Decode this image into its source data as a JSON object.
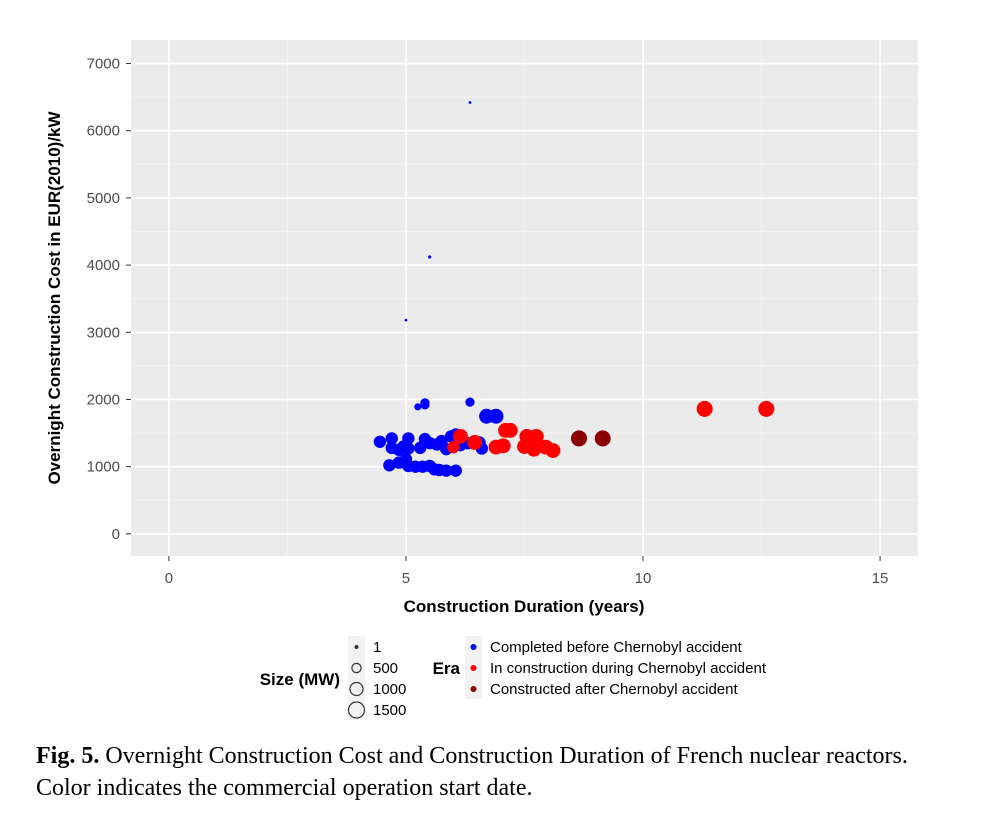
{
  "caption": {
    "label": "Fig. 5.",
    "text": "Overnight Construction Cost and Construction Duration of French nuclear reactors. Color indicates the commercial operation start date."
  },
  "chart_data": {
    "type": "scatter",
    "title": "",
    "xlabel": "Construction Duration (years)",
    "ylabel": "Overnight Construction Cost in EUR(2010)/kW",
    "xlim": [
      -0.8,
      15.8
    ],
    "ylim": [
      -330,
      7350
    ],
    "x_ticks": [
      0,
      5,
      10,
      15
    ],
    "y_ticks": [
      0,
      1000,
      2000,
      3000,
      4000,
      5000,
      6000,
      7000
    ],
    "grid": true,
    "background": "#ebebeb",
    "size_legend": {
      "title": "Size (MW)",
      "entries": [
        {
          "label": "1",
          "size": 1
        },
        {
          "label": "500",
          "size": 500
        },
        {
          "label": "1000",
          "size": 1000
        },
        {
          "label": "1500",
          "size": 1500
        }
      ]
    },
    "color_legend": {
      "title": "Era",
      "entries": [
        {
          "label": "Completed before Chernobyl accident",
          "color": "#0000ff"
        },
        {
          "label": "In construction during Chernobyl accident",
          "color": "#ff0000"
        },
        {
          "label": "Constructed after Chernobyl accident",
          "color": "#8b0000"
        }
      ]
    },
    "series": [
      {
        "color": "#0000ff",
        "points": [
          {
            "x": 6.35,
            "y": 6420,
            "size": 40
          },
          {
            "x": 5.5,
            "y": 4120,
            "size": 60
          },
          {
            "x": 5.0,
            "y": 3180,
            "size": 40
          },
          {
            "x": 5.25,
            "y": 1890,
            "size": 300
          },
          {
            "x": 5.4,
            "y": 1950,
            "size": 500
          },
          {
            "x": 5.4,
            "y": 1920,
            "size": 500
          },
          {
            "x": 6.35,
            "y": 1960,
            "size": 500
          },
          {
            "x": 6.7,
            "y": 1750,
            "size": 1300
          },
          {
            "x": 6.9,
            "y": 1750,
            "size": 1300
          },
          {
            "x": 4.45,
            "y": 1370,
            "size": 900
          },
          {
            "x": 4.7,
            "y": 1420,
            "size": 900
          },
          {
            "x": 4.7,
            "y": 1280,
            "size": 900
          },
          {
            "x": 4.85,
            "y": 1250,
            "size": 900
          },
          {
            "x": 4.95,
            "y": 1300,
            "size": 900
          },
          {
            "x": 5.05,
            "y": 1420,
            "size": 900
          },
          {
            "x": 5.05,
            "y": 1270,
            "size": 900
          },
          {
            "x": 5.3,
            "y": 1280,
            "size": 900
          },
          {
            "x": 5.4,
            "y": 1410,
            "size": 900
          },
          {
            "x": 5.5,
            "y": 1350,
            "size": 900
          },
          {
            "x": 5.65,
            "y": 1330,
            "size": 900
          },
          {
            "x": 5.75,
            "y": 1380,
            "size": 900
          },
          {
            "x": 5.85,
            "y": 1260,
            "size": 900
          },
          {
            "x": 5.95,
            "y": 1450,
            "size": 900
          },
          {
            "x": 6.05,
            "y": 1480,
            "size": 900
          },
          {
            "x": 6.15,
            "y": 1320,
            "size": 900
          },
          {
            "x": 6.3,
            "y": 1350,
            "size": 900
          },
          {
            "x": 6.55,
            "y": 1360,
            "size": 900
          },
          {
            "x": 6.6,
            "y": 1270,
            "size": 900
          },
          {
            "x": 4.65,
            "y": 1020,
            "size": 900
          },
          {
            "x": 4.85,
            "y": 1060,
            "size": 900
          },
          {
            "x": 5.0,
            "y": 1110,
            "size": 900
          },
          {
            "x": 5.05,
            "y": 1010,
            "size": 900
          },
          {
            "x": 5.2,
            "y": 1000,
            "size": 900
          },
          {
            "x": 5.35,
            "y": 1000,
            "size": 900
          },
          {
            "x": 5.5,
            "y": 1010,
            "size": 900
          },
          {
            "x": 5.6,
            "y": 960,
            "size": 900
          },
          {
            "x": 5.7,
            "y": 950,
            "size": 900
          },
          {
            "x": 5.85,
            "y": 940,
            "size": 900
          },
          {
            "x": 6.05,
            "y": 940,
            "size": 900
          }
        ]
      },
      {
        "color": "#ff0000",
        "points": [
          {
            "x": 6.15,
            "y": 1450,
            "size": 1300
          },
          {
            "x": 6.0,
            "y": 1290,
            "size": 900
          },
          {
            "x": 6.45,
            "y": 1360,
            "size": 1300
          },
          {
            "x": 6.9,
            "y": 1290,
            "size": 1300
          },
          {
            "x": 7.05,
            "y": 1310,
            "size": 1300
          },
          {
            "x": 7.1,
            "y": 1540,
            "size": 1300
          },
          {
            "x": 7.2,
            "y": 1540,
            "size": 1300
          },
          {
            "x": 7.5,
            "y": 1300,
            "size": 1300
          },
          {
            "x": 7.55,
            "y": 1450,
            "size": 1300
          },
          {
            "x": 7.65,
            "y": 1320,
            "size": 1300
          },
          {
            "x": 7.75,
            "y": 1450,
            "size": 1300
          },
          {
            "x": 7.7,
            "y": 1260,
            "size": 1300
          },
          {
            "x": 7.95,
            "y": 1290,
            "size": 1300
          },
          {
            "x": 8.1,
            "y": 1240,
            "size": 1300
          },
          {
            "x": 11.3,
            "y": 1860,
            "size": 1500
          },
          {
            "x": 12.6,
            "y": 1860,
            "size": 1500
          }
        ]
      },
      {
        "color": "#8b0000",
        "points": [
          {
            "x": 8.65,
            "y": 1420,
            "size": 1500
          },
          {
            "x": 9.15,
            "y": 1420,
            "size": 1500
          }
        ]
      }
    ]
  }
}
